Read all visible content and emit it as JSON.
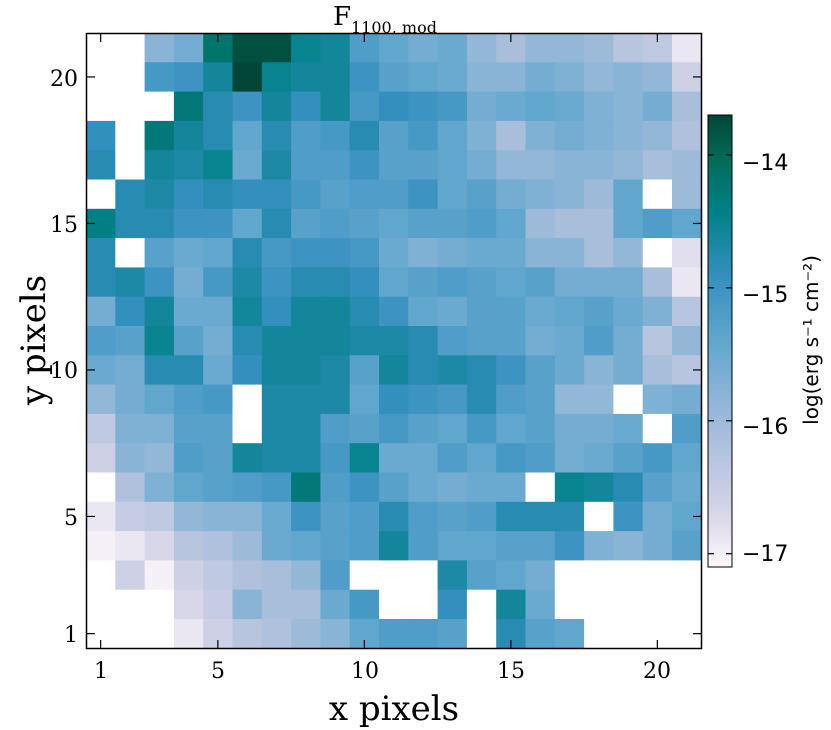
{
  "chart_data": {
    "type": "heatmap",
    "title": "F",
    "title_subscript": "1100, mod",
    "xlabel": "x pixels",
    "ylabel": "y pixels",
    "x_ticks": [
      "1",
      "5",
      "10",
      "15",
      "20"
    ],
    "y_ticks": [
      "1",
      "5",
      "10",
      "15",
      "20"
    ],
    "xlim": [
      0.5,
      21.5
    ],
    "ylim": [
      0.5,
      21.5
    ],
    "colorbar": {
      "label": "log(erg s⁻¹ cm⁻²)",
      "range": [
        -17.1,
        -13.7
      ],
      "ticks": [
        "−14",
        "−15",
        "−16",
        "−17"
      ],
      "colormap": [
        "#fff7fb",
        "#d0d1e6",
        "#a6bddb",
        "#67a9cf",
        "#3690c0",
        "#02818a",
        "#016c59",
        "#014636"
      ]
    },
    "x_range": [
      1,
      21
    ],
    "y_range": [
      1,
      21
    ],
    "grid": false,
    "values_note": "rows listed from y=21 (top) down to y=1; each row has x=1..21; null = masked (white)",
    "values": [
      [
        null,
        null,
        -15.8,
        -15.6,
        -14.2,
        -13.8,
        -13.8,
        -14.5,
        -14.6,
        -15.2,
        -15.4,
        -15.6,
        -15.5,
        -15.9,
        -16.1,
        -15.9,
        -15.9,
        -16.0,
        -16.3,
        -16.4,
        -16.9
      ],
      [
        null,
        null,
        -15.1,
        -15.0,
        -14.6,
        -13.7,
        -14.5,
        -14.6,
        -14.6,
        -15.0,
        -15.3,
        -15.4,
        -15.5,
        -15.8,
        -15.8,
        -15.6,
        -15.7,
        -15.9,
        -15.8,
        -15.9,
        -16.6
      ],
      [
        null,
        null,
        null,
        -14.3,
        -14.8,
        -15.0,
        -14.6,
        -14.9,
        -14.6,
        -15.1,
        -14.9,
        -15.0,
        -15.1,
        -15.6,
        -15.5,
        -15.4,
        -15.5,
        -15.7,
        -15.8,
        -15.6,
        -16.1
      ],
      [
        -14.9,
        null,
        -14.3,
        -14.6,
        -14.8,
        -15.4,
        -14.8,
        -15.2,
        -15.1,
        -14.8,
        -15.3,
        -15.1,
        -15.4,
        -15.7,
        -16.1,
        -15.7,
        -15.6,
        -15.7,
        -15.8,
        -15.9,
        -16.2
      ],
      [
        -14.8,
        null,
        -14.6,
        -14.7,
        -14.5,
        -15.5,
        -14.7,
        -15.2,
        -15.2,
        -15.0,
        -15.3,
        -15.3,
        -15.4,
        -15.6,
        -15.9,
        -15.9,
        -15.8,
        -15.8,
        -15.9,
        -16.1,
        -16.0
      ],
      [
        null,
        -14.8,
        -14.7,
        -14.9,
        -14.8,
        -14.9,
        -14.9,
        -15.1,
        -15.3,
        -15.2,
        -15.2,
        -15.0,
        -15.4,
        -15.3,
        -15.6,
        -15.7,
        -15.8,
        -16.0,
        -15.4,
        null,
        -16.0
      ],
      [
        -14.4,
        -14.8,
        -14.8,
        -15.0,
        -15.0,
        -15.4,
        -14.8,
        -15.3,
        -15.2,
        -15.3,
        -15.4,
        -15.3,
        -15.3,
        -15.2,
        -15.4,
        -16.0,
        -16.1,
        -16.1,
        -15.4,
        -15.2,
        -15.4
      ],
      [
        -14.8,
        null,
        -15.3,
        -15.5,
        -15.4,
        -14.8,
        -15.1,
        -15.0,
        -15.0,
        -15.1,
        -15.5,
        -15.7,
        -15.6,
        -15.5,
        -15.5,
        -15.8,
        -15.8,
        -16.1,
        -15.9,
        null,
        -16.8
      ],
      [
        -14.8,
        -14.7,
        -15.0,
        -15.6,
        -15.1,
        -14.7,
        -15.0,
        -14.8,
        -14.8,
        -14.9,
        -15.4,
        -15.3,
        -15.2,
        -15.3,
        -15.4,
        -15.3,
        -15.6,
        -15.6,
        -15.6,
        -16.1,
        -16.9
      ],
      [
        -15.6,
        -14.9,
        -14.6,
        -15.5,
        -15.5,
        -14.6,
        -14.9,
        -14.6,
        -14.6,
        -14.8,
        -15.0,
        -15.4,
        -15.5,
        -15.3,
        -15.3,
        -15.5,
        -15.4,
        -15.3,
        -15.5,
        -15.7,
        -16.3
      ],
      [
        -15.2,
        -15.3,
        -14.5,
        -15.3,
        -15.6,
        -14.8,
        -14.6,
        -14.6,
        -14.6,
        -14.7,
        -14.7,
        -14.8,
        -15.2,
        -15.3,
        -15.3,
        -15.6,
        -15.5,
        -15.2,
        -15.6,
        -16.3,
        -15.9
      ],
      [
        -15.5,
        -15.6,
        -14.8,
        -14.8,
        -15.5,
        -14.9,
        -14.6,
        -14.6,
        -14.7,
        -15.3,
        -14.6,
        -14.8,
        -14.7,
        -14.8,
        -15.0,
        -15.3,
        -15.5,
        -15.8,
        -15.6,
        -16.1,
        -16.3
      ],
      [
        -15.9,
        -15.6,
        -15.4,
        -15.2,
        -15.1,
        null,
        -14.7,
        -14.7,
        -14.7,
        -15.4,
        -14.9,
        -15.0,
        -15.1,
        -14.8,
        -15.2,
        -15.3,
        -15.9,
        -15.9,
        null,
        -15.7,
        -15.6
      ],
      [
        -16.4,
        -15.7,
        -15.7,
        -15.3,
        -15.3,
        null,
        -14.7,
        -14.7,
        -15.2,
        -15.3,
        -15.1,
        -15.3,
        -15.4,
        -15.1,
        -15.4,
        -15.3,
        -15.6,
        -15.6,
        -15.5,
        null,
        -15.2
      ],
      [
        -16.6,
        -15.8,
        -15.9,
        -15.2,
        -15.3,
        -14.6,
        -14.7,
        -14.7,
        -15.1,
        -14.5,
        -15.5,
        -15.5,
        -15.2,
        -15.4,
        -15.1,
        -15.2,
        -15.6,
        -15.5,
        -15.3,
        -15.1,
        -15.4
      ],
      [
        null,
        -16.2,
        -15.7,
        -15.4,
        -15.3,
        -15.2,
        -15.1,
        -14.3,
        -15.2,
        -15.0,
        -15.3,
        -15.5,
        -15.6,
        -15.5,
        -15.5,
        null,
        -14.5,
        -14.6,
        -14.8,
        -15.3,
        -15.5
      ],
      [
        -16.9,
        -16.5,
        -16.4,
        -15.9,
        -15.8,
        -15.8,
        -15.5,
        -15.0,
        -15.3,
        -15.2,
        -14.8,
        -15.2,
        -15.3,
        -15.2,
        -14.8,
        -14.8,
        -14.8,
        null,
        -15.0,
        -15.6,
        -15.4
      ],
      [
        -17.0,
        -16.9,
        -16.7,
        -16.3,
        -16.2,
        -16.0,
        -15.5,
        -15.4,
        -15.3,
        -15.2,
        -14.6,
        -15.2,
        -15.4,
        -15.4,
        -15.3,
        -15.3,
        -15.0,
        -15.7,
        -15.8,
        -15.6,
        -15.3
      ],
      [
        null,
        -16.6,
        -17.0,
        -16.6,
        -16.4,
        -16.2,
        -16.1,
        -15.9,
        -15.2,
        null,
        null,
        null,
        -14.7,
        -15.3,
        -15.4,
        -15.6,
        null,
        null,
        null,
        null,
        null
      ],
      [
        null,
        null,
        null,
        -16.7,
        -16.5,
        -15.8,
        -16.1,
        -16.1,
        -15.5,
        -15.1,
        null,
        null,
        -14.9,
        null,
        -14.6,
        -15.5,
        null,
        null,
        null,
        null,
        null
      ],
      [
        null,
        null,
        null,
        -16.9,
        -16.6,
        -16.3,
        -16.2,
        -16.0,
        -15.8,
        -15.4,
        -15.2,
        -15.2,
        -15.3,
        null,
        -14.8,
        -15.3,
        -15.4,
        null,
        null,
        null,
        null
      ]
    ]
  }
}
